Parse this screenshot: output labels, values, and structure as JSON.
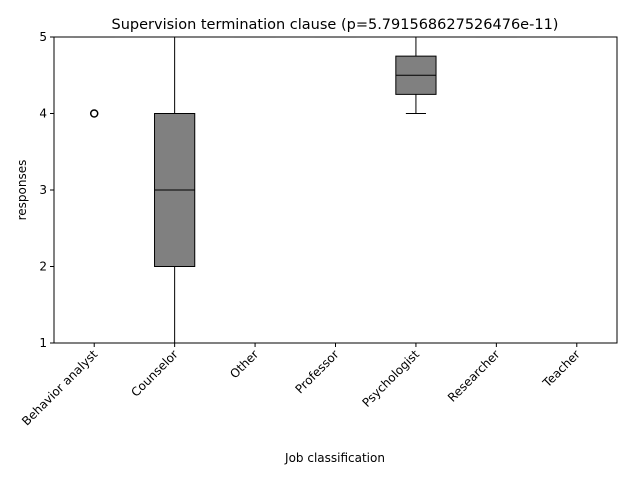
{
  "chart_data": {
    "type": "box",
    "title": "Supervision termination clause (p=5.791568627526476e-11)",
    "xlabel": "Job classification",
    "ylabel": "responses",
    "ylim": [
      1,
      5
    ],
    "yticks": [
      "1",
      "2",
      "3",
      "4",
      "5"
    ],
    "categories": [
      "Behavior analyst",
      "Counselor",
      "Other",
      "Professor",
      "Psychologist",
      "Researcher",
      "Teacher"
    ],
    "boxes": [
      {
        "category": "Behavior analyst",
        "whislo": 5,
        "q1": 5,
        "med": 5,
        "q3": 5,
        "whishi": 5,
        "fliers": [
          4
        ]
      },
      {
        "category": "Counselor",
        "whislo": 1,
        "q1": 2,
        "med": 3,
        "q3": 4,
        "whishi": 5,
        "fliers": []
      },
      {
        "category": "Other",
        "whislo": 5,
        "q1": 5,
        "med": 5,
        "q3": 5,
        "whishi": 5,
        "fliers": []
      },
      {
        "category": "Professor",
        "whislo": 5,
        "q1": 5,
        "med": 5,
        "q3": 5,
        "whishi": 5,
        "fliers": []
      },
      {
        "category": "Psychologist",
        "whislo": 4,
        "q1": 4.25,
        "med": 4.5,
        "q3": 4.75,
        "whishi": 5,
        "fliers": []
      },
      {
        "category": "Researcher",
        "whislo": 5,
        "q1": 5,
        "med": 5,
        "q3": 5,
        "whishi": 5,
        "fliers": []
      },
      {
        "category": "Teacher",
        "whislo": 5,
        "q1": 5,
        "med": 5,
        "q3": 5,
        "whishi": 5,
        "fliers": []
      }
    ],
    "box_color": "#808080",
    "grid": false,
    "legend": "none"
  }
}
